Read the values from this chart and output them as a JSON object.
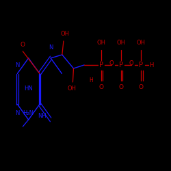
{
  "bg_color": "#000000",
  "blue": "#1a1aff",
  "red": "#cc0000",
  "figsize": [
    2.5,
    2.5
  ],
  "dpi": 100,
  "xlim": [
    0,
    250
  ],
  "ylim": [
    0,
    250
  ]
}
